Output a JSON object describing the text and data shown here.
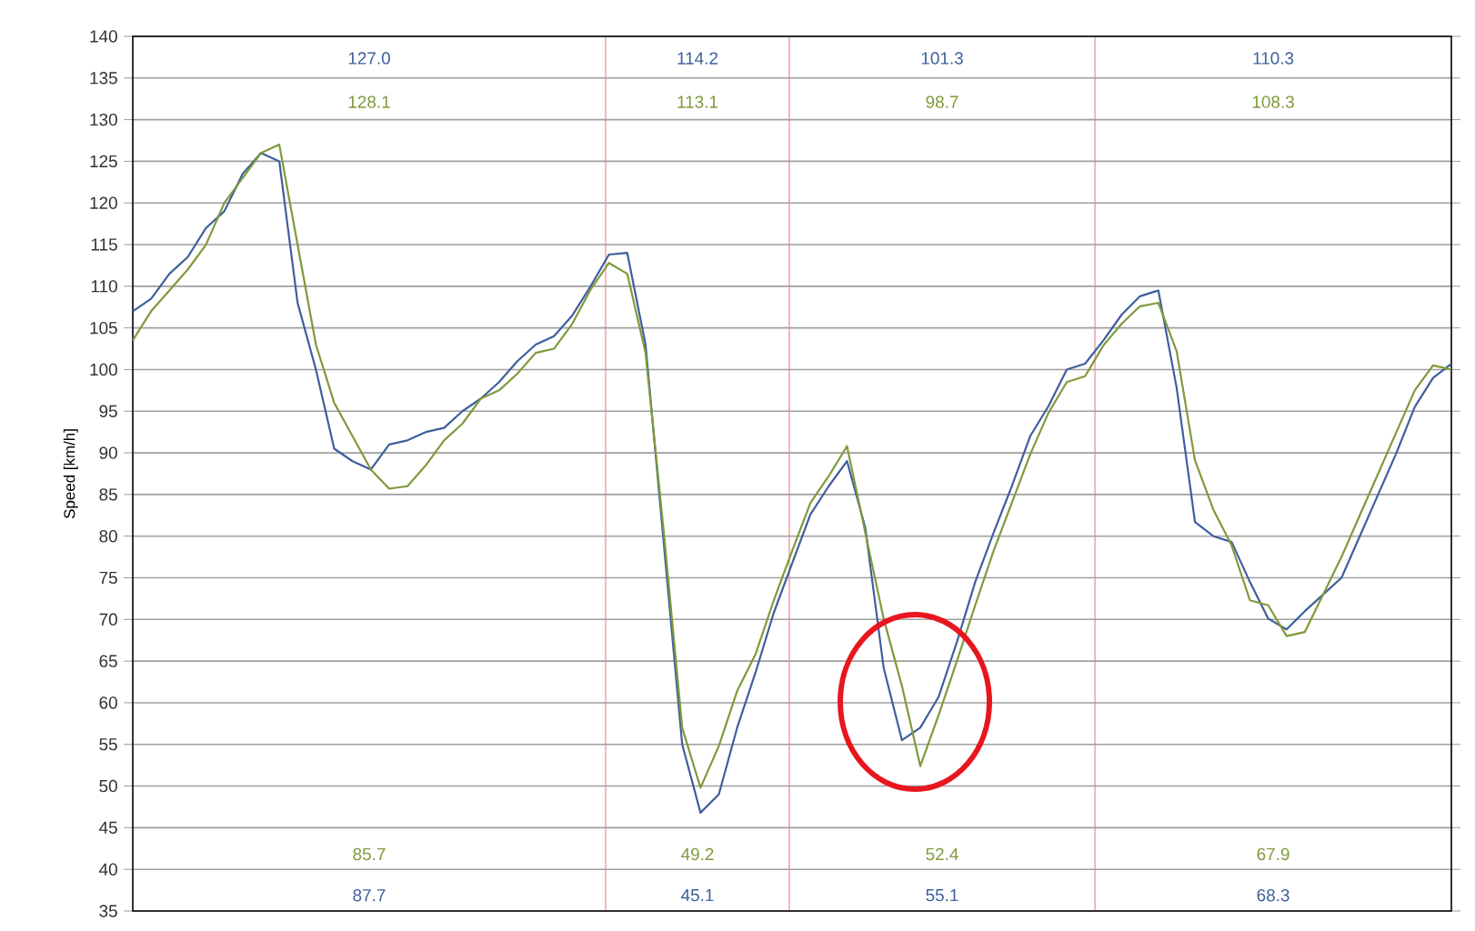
{
  "chart_data": {
    "type": "line",
    "ylabel": "Speed [km/h]",
    "categories": [
      null,
      null,
      null,
      null,
      null,
      null,
      null,
      null,
      null,
      null,
      null,
      null,
      null,
      null,
      null,
      null,
      null,
      null,
      null,
      null,
      null,
      null,
      null,
      null,
      null,
      null,
      null,
      null,
      null,
      null,
      null,
      null,
      null,
      null,
      null,
      null,
      null,
      null,
      null,
      null,
      null,
      null,
      null,
      null,
      null,
      null,
      null,
      null,
      null,
      null,
      null,
      null,
      null,
      null,
      null,
      null,
      null,
      null,
      null,
      null,
      null,
      null,
      null,
      null,
      null,
      null,
      null,
      null,
      null,
      null,
      null,
      null,
      null
    ],
    "series": [
      {
        "color": "#3e5f9c",
        "values": [
          107,
          108.5,
          111.5,
          113.5,
          117,
          119,
          123.5,
          126,
          125,
          108,
          100,
          90.5,
          89,
          88,
          91,
          91.5,
          92.5,
          93,
          95,
          96.5,
          98.5,
          101,
          103,
          104,
          106.5,
          110,
          113.8,
          114,
          103,
          79,
          55,
          46.8,
          49,
          57,
          63.6,
          70.8,
          76.7,
          82.6,
          86,
          89,
          81,
          64.2,
          55.5,
          57,
          60.7,
          67.3,
          74.5,
          80.4,
          86,
          92,
          95.6,
          100,
          100.7,
          103.5,
          106.6,
          108.8,
          109.5,
          97.8,
          81.7,
          80,
          79.3,
          74.5,
          70.1,
          68.8,
          71,
          73,
          75,
          80,
          85,
          90,
          95.5,
          99,
          100.7
        ]
      },
      {
        "color": "#7f9a3b",
        "values": [
          103.5,
          107,
          109.5,
          112,
          115,
          120,
          123,
          126,
          127,
          115,
          103,
          96,
          92,
          88,
          85.7,
          86,
          88.5,
          91.5,
          93.5,
          96.5,
          97.5,
          99.5,
          102,
          102.5,
          105.5,
          109.6,
          112.8,
          111.5,
          102,
          80.4,
          57,
          49.8,
          54.8,
          61.4,
          65.8,
          72.3,
          78.2,
          84,
          87.2,
          90.8,
          80.4,
          70.1,
          62,
          52.4,
          58.5,
          65,
          71.7,
          78.2,
          84,
          89.8,
          94.8,
          98.5,
          99.2,
          102.9,
          105.5,
          107.6,
          108,
          102.2,
          89.1,
          83.2,
          78.9,
          72.3,
          71.7,
          68,
          68.5,
          73,
          77.5,
          82.5,
          87.5,
          92.5,
          97.5,
          100.5,
          100
        ]
      }
    ],
    "ylim": [
      35,
      140
    ],
    "yticks": [
      35,
      40,
      45,
      50,
      55,
      60,
      65,
      70,
      75,
      80,
      85,
      90,
      95,
      100,
      105,
      110,
      115,
      120,
      125,
      130,
      135,
      140
    ],
    "grid": true,
    "tick_labels": "y",
    "marker": "none",
    "line_style": "solid",
    "annotations": [
      "127.0",
      "114.2",
      "101.3",
      "110.3",
      "128.1",
      "113.1",
      "98.7",
      "108.3",
      "85.7",
      "49.2",
      "52.4",
      "67.9",
      "87.7",
      "45.1",
      "55.1",
      "68.3"
    ]
  }
}
